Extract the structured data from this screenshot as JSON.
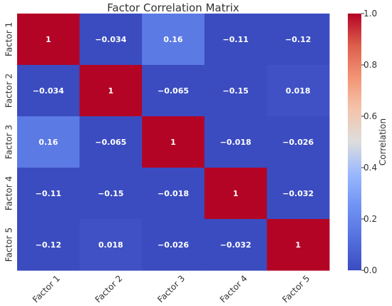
{
  "chart_data": {
    "type": "heatmap",
    "title": "Factor Correlation Matrix",
    "row_labels": [
      "Factor 1",
      "Factor 2",
      "Factor 3",
      "Factor 4",
      "Factor 5"
    ],
    "col_labels": [
      "Factor 1",
      "Factor 2",
      "Factor 3",
      "Factor 4",
      "Factor 5"
    ],
    "values": [
      [
        1,
        -0.034,
        0.16,
        -0.11,
        -0.12
      ],
      [
        -0.034,
        1,
        -0.065,
        -0.15,
        0.018
      ],
      [
        0.16,
        -0.065,
        1,
        -0.018,
        -0.026
      ],
      [
        -0.11,
        -0.15,
        -0.018,
        1,
        -0.032
      ],
      [
        -0.12,
        0.018,
        -0.026,
        -0.032,
        1
      ]
    ],
    "annotations": [
      [
        "1",
        "−0.034",
        "0.16",
        "−0.11",
        "−0.12"
      ],
      [
        "−0.034",
        "1",
        "−0.065",
        "−0.15",
        "0.018"
      ],
      [
        "0.16",
        "−0.065",
        "1",
        "−0.018",
        "−0.026"
      ],
      [
        "−0.11",
        "−0.15",
        "−0.018",
        "1",
        "−0.032"
      ],
      [
        "−0.12",
        "0.018",
        "−0.026",
        "−0.032",
        "1"
      ]
    ],
    "colorbar": {
      "label": "Correlation",
      "range": [
        0.0,
        1.0
      ],
      "ticks": [
        0.0,
        0.2,
        0.4,
        0.6,
        0.8,
        1.0
      ],
      "tick_labels": [
        "0.0",
        "0.2",
        "0.4",
        "0.6",
        "0.8",
        "1.0"
      ],
      "colormap": "coolwarm"
    },
    "colors": {
      "low": "#3b4cc0",
      "mid": "#dddddd",
      "high": "#b40426",
      "annotation_text": "#ffffff"
    }
  }
}
